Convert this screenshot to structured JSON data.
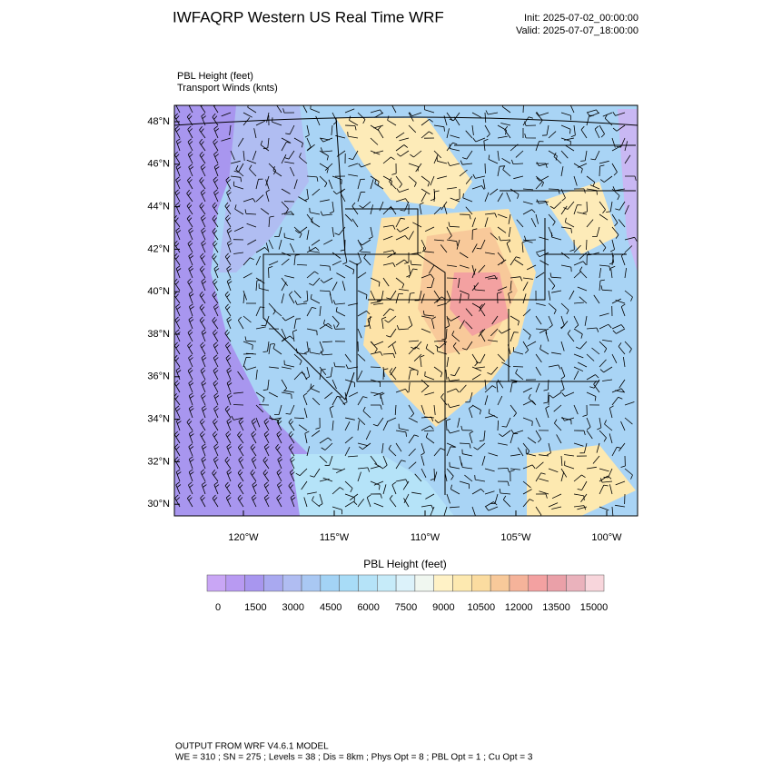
{
  "header": {
    "title": "IWFAQRP Western US Real Time WRF",
    "init": "Init: 2025-07-02_00:00:00",
    "valid": "Valid: 2025-07-07_18:00:00"
  },
  "map": {
    "field_label": "PBL Height   (feet)",
    "wind_label": "Transport Winds   (knts)",
    "lat_labels": [
      "48°N",
      "46°N",
      "44°N",
      "42°N",
      "40°N",
      "38°N",
      "36°N",
      "34°N",
      "32°N",
      "30°N"
    ],
    "lon_labels": [
      "120°W",
      "115°W",
      "110°W",
      "105°W",
      "100°W"
    ]
  },
  "colorbar": {
    "title": "PBL Height  (feet)",
    "ticks": [
      0,
      1500,
      3000,
      4500,
      6000,
      7500,
      9000,
      10500,
      12000,
      13500,
      15000
    ],
    "colors": [
      "#c9a6f5",
      "#b89af2",
      "#a896ef",
      "#a9a9f0",
      "#b0bdf2",
      "#a9c8f3",
      "#a3d3f5",
      "#a8dcf7",
      "#b5e3f8",
      "#c6ebf9",
      "#dcf2fa",
      "#f0f7f0",
      "#fff2c6",
      "#fde9b0",
      "#fbdca0",
      "#f8c99a",
      "#f5b39a",
      "#f3a1a1",
      "#eaa0a8",
      "#eab2bc",
      "#f8d6dc"
    ]
  },
  "footer": {
    "line1": "OUTPUT FROM WRF V4.6.1 MODEL",
    "line2": "WE = 310 ; SN = 275 ; Levels = 38 ; Dis = 8km ; Phys Opt = 8 ; PBL Opt = 1 ; Cu Opt = 3"
  }
}
